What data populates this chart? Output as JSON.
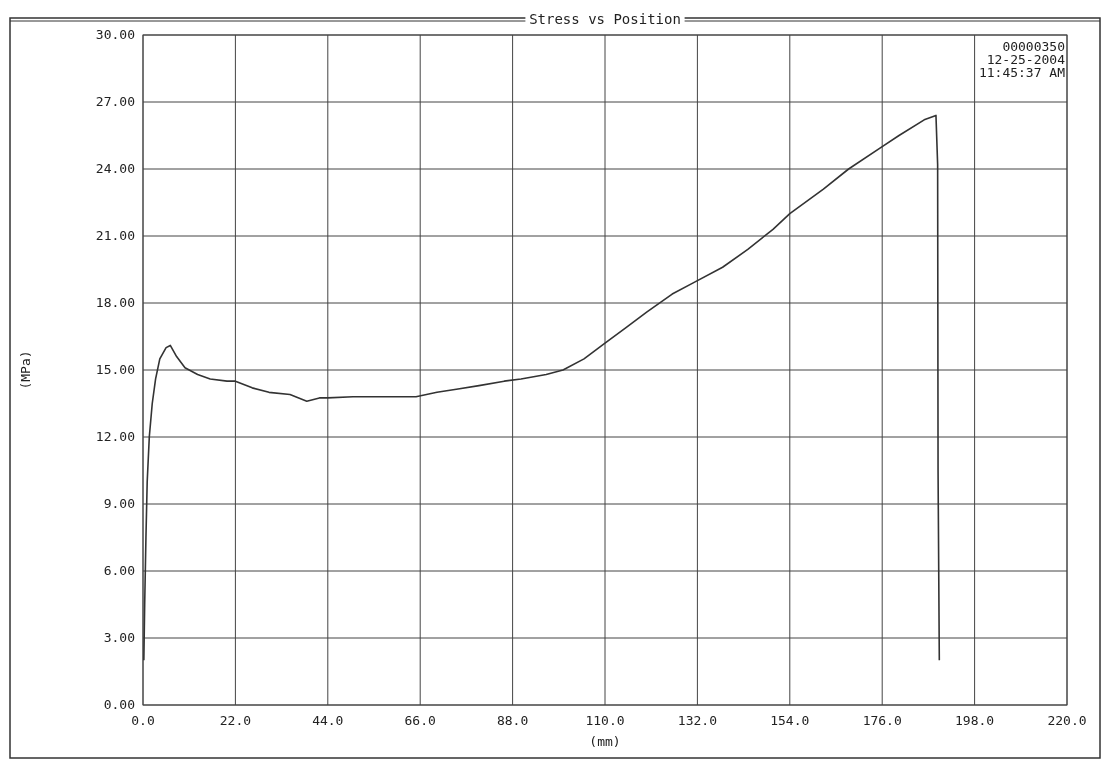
{
  "chart_data": {
    "type": "line",
    "title": "Stress vs Position",
    "xlabel": "(mm)",
    "ylabel": "(MPa)",
    "annotations": [
      "00000350",
      "12-25-2004",
      "11:45:37 AM"
    ],
    "xlim": [
      0,
      220
    ],
    "ylim": [
      0,
      30
    ],
    "xticks": [
      {
        "value": 0,
        "label": "0.0"
      },
      {
        "value": 22,
        "label": "22.0"
      },
      {
        "value": 44,
        "label": "44.0"
      },
      {
        "value": 66,
        "label": "66.0"
      },
      {
        "value": 88,
        "label": "88.0"
      },
      {
        "value": 110,
        "label": "110.0"
      },
      {
        "value": 132,
        "label": "132.0"
      },
      {
        "value": 154,
        "label": "154.0"
      },
      {
        "value": 176,
        "label": "176.0"
      },
      {
        "value": 198,
        "label": "198.0"
      },
      {
        "value": 220,
        "label": "220.0"
      }
    ],
    "yticks": [
      {
        "value": 0,
        "label": "0.00"
      },
      {
        "value": 3,
        "label": "3.00"
      },
      {
        "value": 6,
        "label": "6.00"
      },
      {
        "value": 9,
        "label": "9.00"
      },
      {
        "value": 12,
        "label": "12.00"
      },
      {
        "value": 15,
        "label": "15.00"
      },
      {
        "value": 18,
        "label": "18.00"
      },
      {
        "value": 21,
        "label": "21.00"
      },
      {
        "value": 24,
        "label": "24.00"
      },
      {
        "value": 27,
        "label": "27.00"
      },
      {
        "value": 30,
        "label": "30.00"
      }
    ],
    "grid": true,
    "marker": "none",
    "line_style": "solid",
    "series": [
      {
        "color": "#333333",
        "x": [
          0.2,
          0.4,
          0.7,
          1.0,
          1.5,
          2.2,
          3,
          4,
          5.5,
          6.5,
          8,
          10,
          13,
          16,
          20,
          22,
          26,
          30,
          35,
          39,
          42,
          44,
          50,
          55,
          60,
          65,
          70,
          75,
          80,
          86,
          90,
          96,
          100,
          105,
          110,
          115,
          120,
          126,
          131,
          138,
          144,
          150,
          154,
          162,
          168,
          176,
          180,
          186,
          188.8,
          189.2,
          189.3,
          189.6
        ],
        "values": [
          2.0,
          4.5,
          7.5,
          10,
          12,
          13.5,
          14.6,
          15.5,
          16.0,
          16.1,
          15.6,
          15.1,
          14.8,
          14.6,
          14.5,
          14.5,
          14.2,
          14.0,
          13.9,
          13.6,
          13.75,
          13.75,
          13.8,
          13.8,
          13.8,
          13.8,
          14.0,
          14.15,
          14.3,
          14.5,
          14.6,
          14.8,
          15.0,
          15.5,
          16.2,
          16.9,
          17.6,
          18.4,
          18.9,
          19.6,
          20.4,
          21.3,
          22.0,
          23.1,
          24.0,
          25.0,
          25.5,
          26.2,
          26.4,
          24.2,
          10.5,
          2.0
        ]
      }
    ]
  }
}
